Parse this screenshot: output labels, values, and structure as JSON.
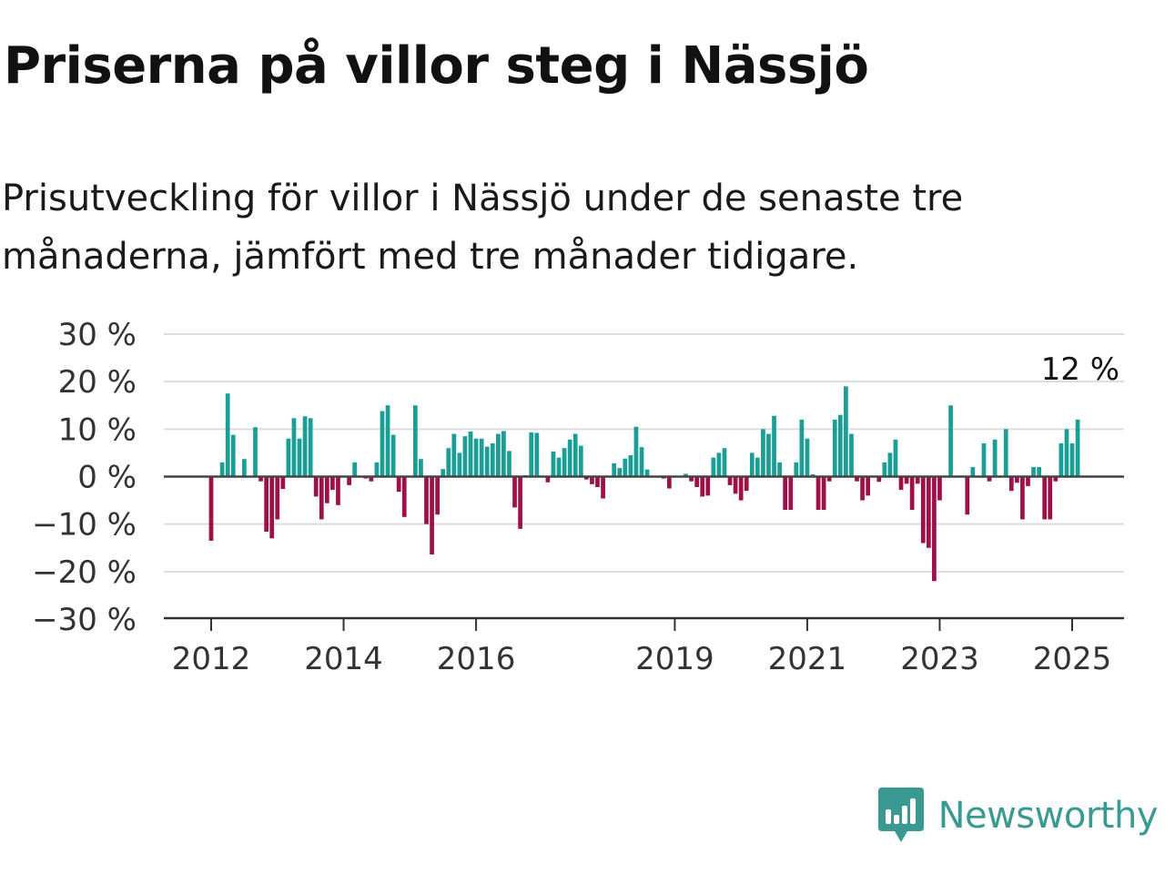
{
  "title": "Priserna på villor steg i Nässjö",
  "subtitle": "Prisutveckling för villor i Nässjö under de senaste tre månaderna, jämfört med tre månader tidigare.",
  "brand": {
    "name": "Newsworthy",
    "icon": "newsworthy-logo-icon"
  },
  "colors": {
    "positive": "#1a9e95",
    "negative": "#a01048",
    "zero_line": "#444444",
    "grid": "#dddddd"
  },
  "chart_data": {
    "type": "bar",
    "title": "Priserna på villor steg i Nässjö",
    "xlabel": "",
    "ylabel": "",
    "unit": "%",
    "ylim": [
      -30,
      30
    ],
    "y_ticks": [
      30,
      20,
      10,
      0,
      -10,
      -20,
      -30
    ],
    "y_tick_labels": [
      "30 %",
      "20 %",
      "10 %",
      "0 %",
      "−10 %",
      "−20 %",
      "−30 %"
    ],
    "x_tick_labels": [
      "2012",
      "2014",
      "2016",
      "2019",
      "2021",
      "2023",
      "2025"
    ],
    "x_tick_months": [
      "2012-01",
      "2014-01",
      "2016-01",
      "2019-01",
      "2021-01",
      "2023-01",
      "2025-01"
    ],
    "start_month": "2012-01",
    "end_month": "2025-01",
    "grid": true,
    "legend": "none",
    "last_value_label": "12 %",
    "series": [
      {
        "values": [
          -13.5,
          0,
          3,
          17.5,
          8.8,
          0,
          3.7,
          0,
          10.4,
          -1,
          -11.6,
          -13,
          -9,
          -2.6,
          8,
          12.3,
          8,
          12.7,
          12.3,
          -4.2,
          -9,
          -5.6,
          -2.8,
          -6,
          0,
          -1.8,
          3,
          0,
          -0.4,
          -1,
          3,
          13.8,
          15,
          8.8,
          -3.2,
          -8.5,
          0,
          15,
          3.7,
          -10,
          -16.4,
          -8,
          1.6,
          6,
          9,
          5,
          8.5,
          9.5,
          8,
          8,
          6.3,
          7,
          9,
          9.6,
          5.4,
          -6.5,
          -11,
          0.3,
          9.3,
          9.2,
          0,
          -1.2,
          5.3,
          4,
          6,
          7.8,
          9,
          6.5,
          -0.6,
          -1.6,
          -2.2,
          -4.6,
          0,
          2.8,
          1.8,
          3.8,
          4.5,
          10.5,
          6.2,
          1.5,
          0,
          0,
          -0.4,
          -2.5,
          0,
          0,
          0.6,
          -1,
          -2.2,
          -4.2,
          -4,
          4,
          5,
          6,
          -1.8,
          -3.6,
          -5,
          -3,
          5,
          4,
          10,
          9,
          12.8,
          3,
          -7,
          -7,
          3,
          12,
          8,
          0.5,
          -7,
          -7,
          -1,
          12,
          13,
          19,
          9,
          -1,
          -5,
          -4,
          0,
          -1.1,
          3,
          5,
          7.8,
          -2.8,
          -1.5,
          -7,
          -1.5,
          -14,
          -15,
          -22,
          -5,
          0,
          15,
          0,
          0,
          -8,
          2,
          0,
          7,
          -1,
          7.8,
          0,
          10,
          -3,
          -1.3,
          -9,
          -2,
          2,
          2,
          -9,
          -9,
          -1,
          7,
          10,
          7,
          12
        ]
      }
    ]
  }
}
